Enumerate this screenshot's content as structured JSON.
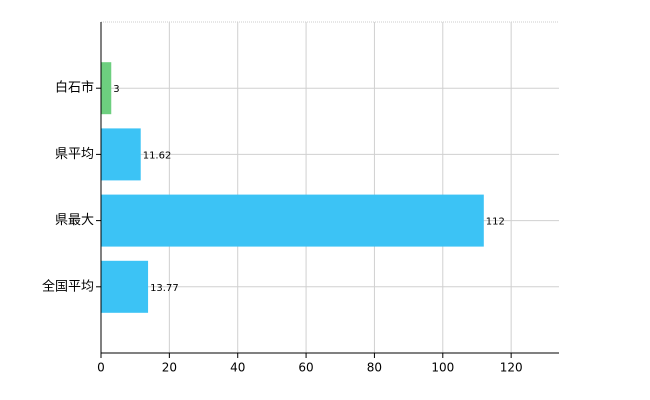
{
  "chart_data": {
    "type": "hbar",
    "categories": [
      "白石市",
      "県平均",
      "県最大",
      "全国平均"
    ],
    "values": [
      3,
      11.62,
      112,
      13.77
    ],
    "colors": [
      "#6dcf7f",
      "#3cc3f5",
      "#3cc3f5",
      "#3cc3f5"
    ],
    "xlim": [
      0,
      134
    ],
    "xticks": [
      0,
      20,
      40,
      60,
      80,
      100,
      120
    ],
    "grid": true
  }
}
